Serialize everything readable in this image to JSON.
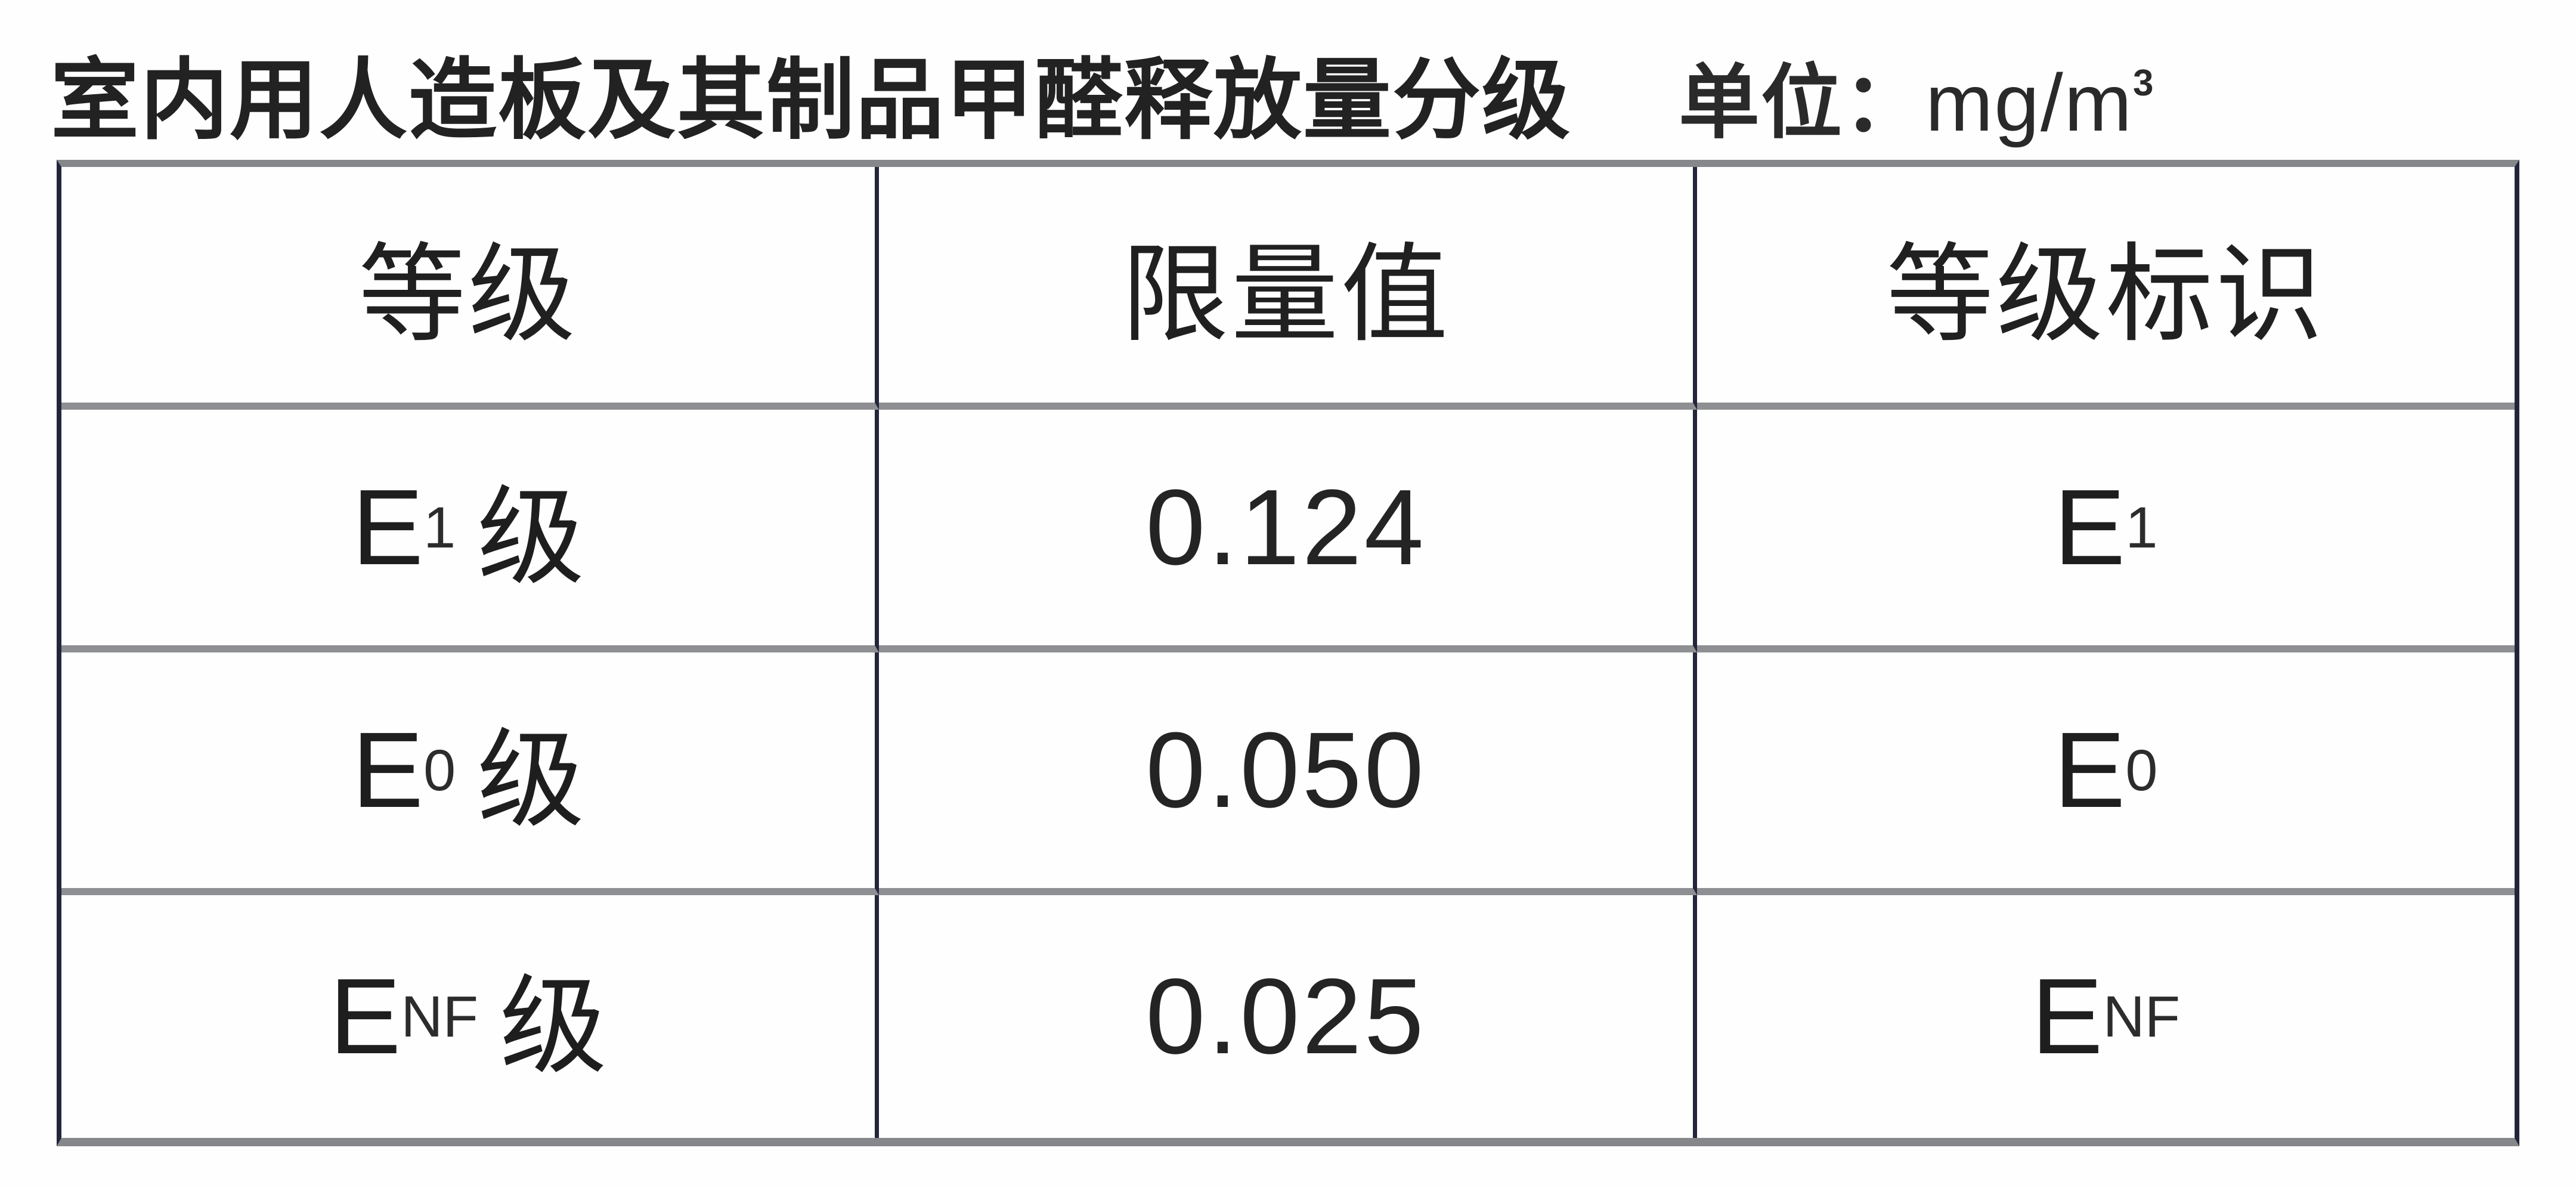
{
  "header": {
    "title": "室内用人造板及其制品甲醛释放量分级",
    "unit_prefix": "单位：",
    "unit_base": "mg/m",
    "unit_sup": "3"
  },
  "table": {
    "columns": [
      "等级",
      "限量值",
      "等级标识"
    ],
    "rows": [
      {
        "grade_base": "E",
        "grade_sub": "1",
        "grade_suffix": "级",
        "limit": "0.124",
        "mark_base": "E",
        "mark_sub": "1"
      },
      {
        "grade_base": "E",
        "grade_sub": "0",
        "grade_suffix": "级",
        "limit": "0.050",
        "mark_base": "E",
        "mark_sub": "0"
      },
      {
        "grade_base": "E",
        "grade_sub": "NF",
        "grade_suffix": "级",
        "limit": "0.025",
        "mark_base": "E",
        "mark_sub": "NF"
      }
    ]
  },
  "colors": {
    "horizontal_rule": "#85878a",
    "vertical_rule": "#23263a",
    "text": "#1f1f1f",
    "background": "#fefefe"
  }
}
